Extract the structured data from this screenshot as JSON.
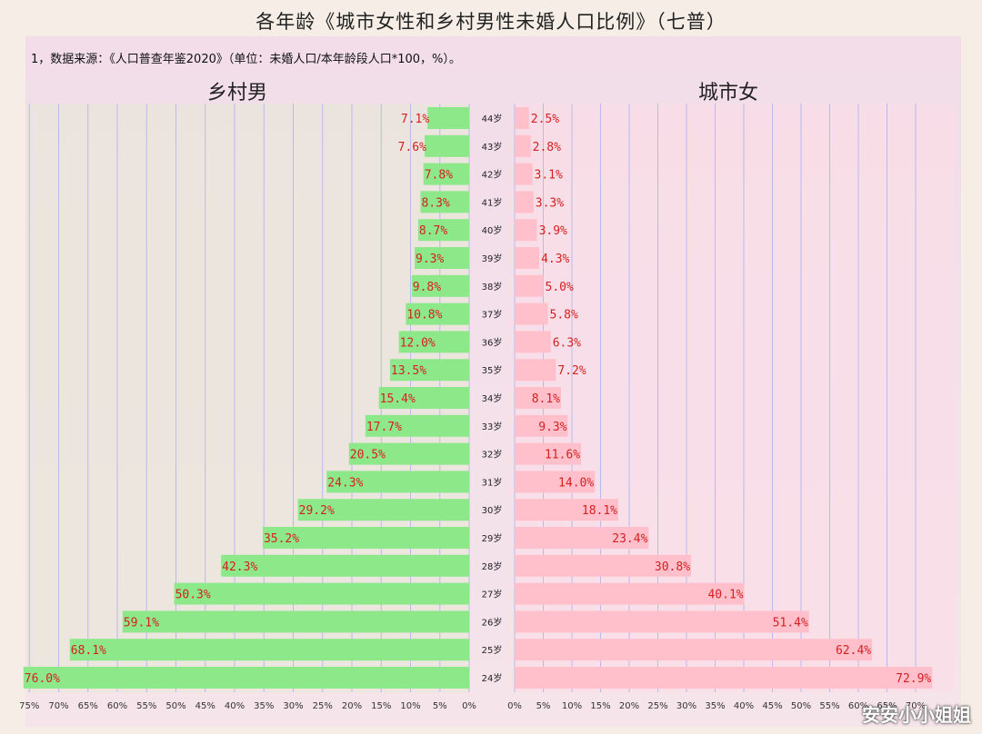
{
  "title": "各年龄《城市女性和乡村男性未婚人口比例》（七普）",
  "note": "1，数据来源：《人口普查年鉴2020》（单位：未婚人口/本年龄段人口*100，%）。",
  "watermark": "安安小小姐姐",
  "chart_data": {
    "type": "bar",
    "orientation": "horizontal-butterfly",
    "categories": [
      "44岁",
      "43岁",
      "42岁",
      "41岁",
      "40岁",
      "39岁",
      "38岁",
      "37岁",
      "36岁",
      "35岁",
      "34岁",
      "33岁",
      "32岁",
      "31岁",
      "30岁",
      "29岁",
      "28岁",
      "27岁",
      "26岁",
      "25岁",
      "24岁"
    ],
    "series": [
      {
        "name": "乡村男",
        "color": "#8de88a",
        "label_color": "#d62020",
        "values": [
          7.1,
          7.6,
          7.8,
          8.3,
          8.7,
          9.3,
          9.8,
          10.8,
          12.0,
          13.5,
          15.4,
          17.7,
          20.5,
          24.3,
          29.2,
          35.2,
          42.3,
          50.3,
          59.1,
          68.1,
          76.0
        ],
        "ticks": [
          "75%",
          "70%",
          "65%",
          "60%",
          "55%",
          "50%",
          "45%",
          "40%",
          "35%",
          "30%",
          "25%",
          "20%",
          "15%",
          "10%",
          "5%",
          "0%"
        ]
      },
      {
        "name": "城市女",
        "color": "#ffc0cc",
        "label_color": "#d62020",
        "values": [
          2.5,
          2.8,
          3.1,
          3.3,
          3.9,
          4.3,
          5.0,
          5.8,
          6.3,
          7.2,
          8.1,
          9.3,
          11.6,
          14.0,
          18.1,
          23.4,
          30.8,
          40.1,
          51.4,
          62.4,
          72.9
        ],
        "ticks": [
          "0%",
          "5%",
          "10%",
          "15%",
          "20%",
          "25%",
          "30%",
          "35%",
          "40%",
          "45%",
          "50%",
          "55%",
          "60%",
          "65%",
          "70%"
        ]
      }
    ],
    "value_labels": {
      "乡村男": [
        "7.1%",
        "7.6%",
        "7.8%",
        "8.3%",
        "8.7%",
        "9.3%",
        "9.8%",
        "10.8%",
        "12.0%",
        "13.5%",
        "15.4%",
        "17.7%",
        "20.5%",
        "24.3%",
        "29.2%",
        "35.2%",
        "42.3%",
        "50.3%",
        "59.1%",
        "68.1%",
        "76.0%"
      ],
      "城市女": [
        "2.5%",
        "2.8%",
        "3.1%",
        "3.3%",
        "3.9%",
        "4.3%",
        "5.0%",
        "5.8%",
        "6.3%",
        "7.2%",
        "8.1%",
        "9.3%",
        "11.6%",
        "14.0%",
        "18.1%",
        "23.4%",
        "30.8%",
        "40.1%",
        "51.4%",
        "62.4%",
        "72.9%"
      ]
    },
    "xlim": [
      0,
      76
    ],
    "grid": true
  }
}
